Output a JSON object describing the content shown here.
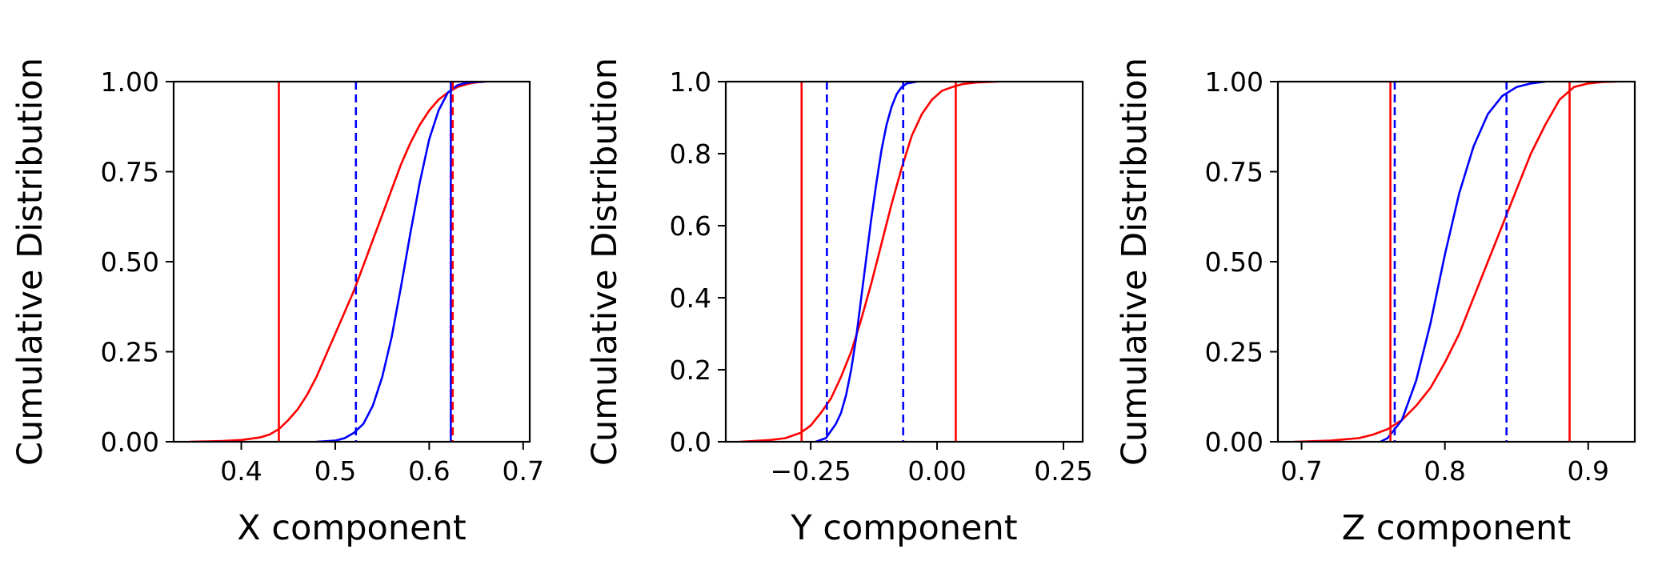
{
  "chart_data": [
    {
      "type": "line",
      "xlabel": "X component",
      "ylabel": "Cumulative Distribution",
      "xlim": [
        0.328,
        0.707
      ],
      "ylim": [
        0,
        1
      ],
      "xticks": [
        0.4,
        0.5,
        0.6,
        0.7
      ],
      "xtick_labels": [
        "0.4",
        "0.5",
        "0.6",
        "0.7"
      ],
      "yticks": [
        0,
        0.25,
        0.5,
        0.75,
        1.0
      ],
      "ytick_labels": [
        "0.00",
        "0.25",
        "0.50",
        "0.75",
        "1.00"
      ],
      "grid": false,
      "series": [
        {
          "color": "#ff0000",
          "x": [
            0.345,
            0.38,
            0.4,
            0.42,
            0.43,
            0.44,
            0.45,
            0.46,
            0.47,
            0.48,
            0.49,
            0.5,
            0.51,
            0.52,
            0.53,
            0.54,
            0.55,
            0.56,
            0.57,
            0.58,
            0.59,
            0.6,
            0.61,
            0.62,
            0.63,
            0.64,
            0.65,
            0.66
          ],
          "y": [
            0.0,
            0.002,
            0.005,
            0.012,
            0.02,
            0.035,
            0.06,
            0.09,
            0.13,
            0.18,
            0.24,
            0.3,
            0.36,
            0.42,
            0.49,
            0.56,
            0.63,
            0.7,
            0.77,
            0.83,
            0.88,
            0.92,
            0.95,
            0.97,
            0.985,
            0.993,
            0.998,
            1.0
          ]
        },
        {
          "color": "#0000ff",
          "x": [
            0.48,
            0.5,
            0.51,
            0.52,
            0.53,
            0.54,
            0.55,
            0.56,
            0.57,
            0.58,
            0.59,
            0.6,
            0.61,
            0.62,
            0.63,
            0.64,
            0.65,
            0.66
          ],
          "y": [
            0.0,
            0.003,
            0.01,
            0.025,
            0.05,
            0.1,
            0.18,
            0.29,
            0.43,
            0.58,
            0.72,
            0.84,
            0.92,
            0.97,
            0.99,
            0.997,
            0.999,
            1.0
          ]
        }
      ],
      "vlines": [
        {
          "x": 0.44,
          "color": "#ff0000",
          "style": "solid"
        },
        {
          "x": 0.522,
          "color": "#0000ff",
          "style": "dashed"
        },
        {
          "x": 0.623,
          "color": "#0000ff",
          "style": "solid"
        },
        {
          "x": 0.625,
          "color": "#ff0000",
          "style": "dashed"
        }
      ]
    },
    {
      "type": "line",
      "xlabel": "Y component",
      "ylabel": "Cumulative Distribution",
      "xlim": [
        -0.418,
        0.288
      ],
      "ylim": [
        0,
        1
      ],
      "xticks": [
        -0.25,
        0.0,
        0.25
      ],
      "xtick_labels": [
        "−0.25",
        "0.00",
        "0.25"
      ],
      "yticks": [
        0,
        0.2,
        0.4,
        0.6,
        0.8,
        1.0
      ],
      "ytick_labels": [
        "0.0",
        "0.2",
        "0.4",
        "0.6",
        "0.8",
        "1.0"
      ],
      "grid": false,
      "series": [
        {
          "color": "#ff0000",
          "x": [
            -0.39,
            -0.33,
            -0.3,
            -0.27,
            -0.25,
            -0.23,
            -0.21,
            -0.19,
            -0.17,
            -0.15,
            -0.13,
            -0.11,
            -0.09,
            -0.07,
            -0.05,
            -0.03,
            -0.01,
            0.01,
            0.03,
            0.05,
            0.08,
            0.12
          ],
          "y": [
            0.0,
            0.005,
            0.01,
            0.025,
            0.045,
            0.08,
            0.12,
            0.18,
            0.25,
            0.34,
            0.44,
            0.55,
            0.66,
            0.76,
            0.85,
            0.91,
            0.95,
            0.975,
            0.985,
            0.993,
            0.998,
            1.0
          ]
        },
        {
          "color": "#0000ff",
          "x": [
            -0.24,
            -0.22,
            -0.21,
            -0.2,
            -0.19,
            -0.18,
            -0.17,
            -0.16,
            -0.15,
            -0.14,
            -0.13,
            -0.12,
            -0.11,
            -0.1,
            -0.09,
            -0.08,
            -0.07,
            -0.06,
            -0.04
          ],
          "y": [
            0.0,
            0.01,
            0.03,
            0.05,
            0.08,
            0.13,
            0.2,
            0.29,
            0.4,
            0.51,
            0.62,
            0.72,
            0.81,
            0.88,
            0.93,
            0.965,
            0.985,
            0.995,
            1.0
          ]
        }
      ],
      "vlines": [
        {
          "x": -0.268,
          "color": "#ff0000",
          "style": "solid"
        },
        {
          "x": -0.218,
          "color": "#0000ff",
          "style": "dashed"
        },
        {
          "x": -0.067,
          "color": "#0000ff",
          "style": "dashed"
        },
        {
          "x": 0.037,
          "color": "#ff0000",
          "style": "solid"
        }
      ]
    },
    {
      "type": "line",
      "xlabel": "Z component",
      "ylabel": "Cumulative Distribution",
      "xlim": [
        0.6835,
        0.9325
      ],
      "ylim": [
        0,
        1
      ],
      "xticks": [
        0.7,
        0.8,
        0.9
      ],
      "xtick_labels": [
        "0.7",
        "0.8",
        "0.9"
      ],
      "yticks": [
        0,
        0.25,
        0.5,
        0.75,
        1.0
      ],
      "ytick_labels": [
        "0.00",
        "0.25",
        "0.50",
        "0.75",
        "1.00"
      ],
      "grid": false,
      "series": [
        {
          "color": "#ff0000",
          "x": [
            0.695,
            0.72,
            0.74,
            0.75,
            0.76,
            0.77,
            0.78,
            0.79,
            0.8,
            0.81,
            0.82,
            0.83,
            0.84,
            0.85,
            0.86,
            0.87,
            0.88,
            0.89,
            0.9,
            0.91,
            0.92
          ],
          "y": [
            0.0,
            0.003,
            0.01,
            0.02,
            0.035,
            0.06,
            0.1,
            0.15,
            0.22,
            0.3,
            0.4,
            0.5,
            0.6,
            0.7,
            0.8,
            0.88,
            0.95,
            0.985,
            0.995,
            0.999,
            1.0
          ]
        },
        {
          "color": "#0000ff",
          "x": [
            0.755,
            0.76,
            0.77,
            0.78,
            0.79,
            0.8,
            0.81,
            0.82,
            0.83,
            0.84,
            0.85,
            0.86,
            0.87
          ],
          "y": [
            0.0,
            0.01,
            0.06,
            0.17,
            0.33,
            0.52,
            0.69,
            0.82,
            0.91,
            0.96,
            0.985,
            0.995,
            1.0
          ]
        }
      ],
      "vlines": [
        {
          "x": 0.762,
          "color": "#ff0000",
          "style": "solid"
        },
        {
          "x": 0.765,
          "color": "#0000ff",
          "style": "dashed"
        },
        {
          "x": 0.843,
          "color": "#0000ff",
          "style": "dashed"
        },
        {
          "x": 0.887,
          "color": "#ff0000",
          "style": "solid"
        }
      ]
    }
  ]
}
